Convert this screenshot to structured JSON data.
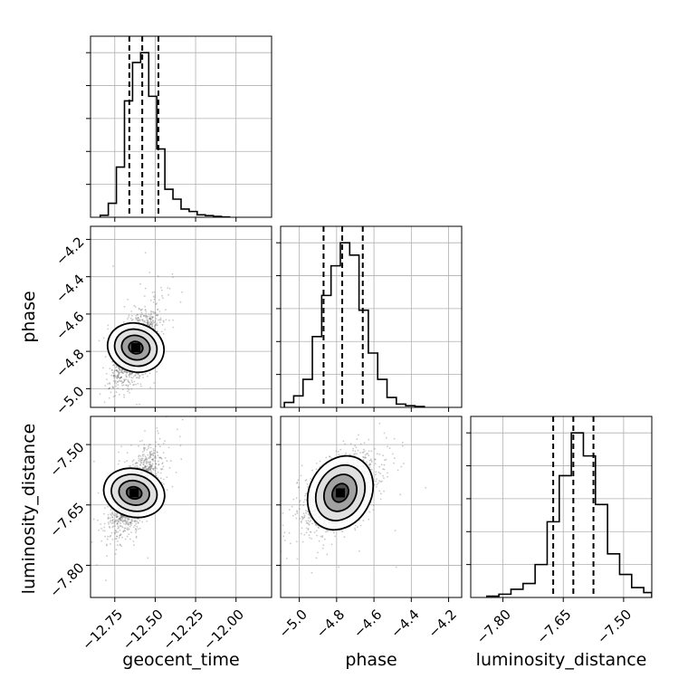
{
  "chart_data": {
    "type": "corner",
    "parameters": [
      "geocent_time",
      "phase",
      "luminosity_distance"
    ],
    "grid": true,
    "quantile_lines": "dashed",
    "axes": {
      "geocent_time": {
        "range": [
          -12.9,
          -11.78
        ],
        "ticks": [
          -12.75,
          -12.5,
          -12.25,
          -12.0
        ],
        "tick_labels": [
          "−12.75",
          "−12.50",
          "−12.25",
          "−12.00"
        ]
      },
      "phase": {
        "range": [
          -5.1,
          -4.13
        ],
        "ticks": [
          -5.0,
          -4.8,
          -4.6,
          -4.4,
          -4.2
        ],
        "tick_labels": [
          "−5.0",
          "−4.8",
          "−4.6",
          "−4.4",
          "−4.2"
        ]
      },
      "luminosity_distance": {
        "range": [
          -7.88,
          -7.43
        ],
        "ticks": [
          -7.8,
          -7.65,
          -7.5
        ],
        "tick_labels": [
          "−7.80",
          "−7.65",
          "−7.50"
        ]
      }
    },
    "histograms": {
      "geocent_time": {
        "bin_edges": [
          -12.84,
          -12.79,
          -12.74,
          -12.69,
          -12.64,
          -12.59,
          -12.54,
          -12.49,
          -12.44,
          -12.39,
          -12.34,
          -12.29,
          -12.24,
          -12.19,
          -12.14,
          -12.09,
          -12.04
        ],
        "counts": [
          12,
          85,
          305,
          707,
          940,
          1000,
          735,
          415,
          170,
          110,
          50,
          35,
          15,
          10,
          5,
          2
        ],
        "quantiles": [
          -12.66,
          -12.58,
          -12.48
        ]
      },
      "phase": {
        "bin_edges": [
          -5.08,
          -5.03,
          -4.98,
          -4.93,
          -4.88,
          -4.83,
          -4.78,
          -4.73,
          -4.68,
          -4.63,
          -4.58,
          -4.53,
          -4.48,
          -4.43,
          -4.38,
          -4.33
        ],
        "counts": [
          30,
          70,
          170,
          430,
          680,
          860,
          1000,
          925,
          590,
          330,
          170,
          60,
          20,
          10,
          5
        ],
        "quantiles": [
          -4.87,
          -4.77,
          -4.66
        ]
      },
      "luminosity_distance": {
        "bin_edges": [
          -7.84,
          -7.81,
          -7.78,
          -7.75,
          -7.72,
          -7.69,
          -7.66,
          -7.63,
          -7.6,
          -7.57,
          -7.54,
          -7.51,
          -7.48,
          -7.45,
          -7.43
        ],
        "counts": [
          8,
          20,
          50,
          85,
          200,
          460,
          740,
          1000,
          860,
          565,
          265,
          140,
          60,
          30
        ],
        "quantiles": [
          -7.675,
          -7.625,
          -7.575
        ]
      }
    },
    "density_2d": [
      {
        "x": "geocent_time",
        "y": "phase",
        "center": [
          -12.62,
          -4.78
        ],
        "sigma": [
          0.065,
          0.09
        ],
        "correlation": 0.6,
        "samples": 1800
      },
      {
        "x": "geocent_time",
        "y": "luminosity_distance",
        "center": [
          -12.63,
          -7.62
        ],
        "sigma": [
          0.065,
          0.045
        ],
        "correlation": 0.65,
        "samples": 1800
      },
      {
        "x": "phase",
        "y": "luminosity_distance",
        "center": [
          -4.78,
          -7.62
        ],
        "sigma": [
          0.09,
          0.045
        ],
        "correlation": 0.55,
        "samples": 1800
      }
    ],
    "contour_levels": [
      0.5,
      1.0,
      1.5,
      2.0
    ]
  },
  "style": {
    "hist_color": "#000000",
    "grid_color": "#b0b0b0",
    "point_color": "#666666"
  }
}
